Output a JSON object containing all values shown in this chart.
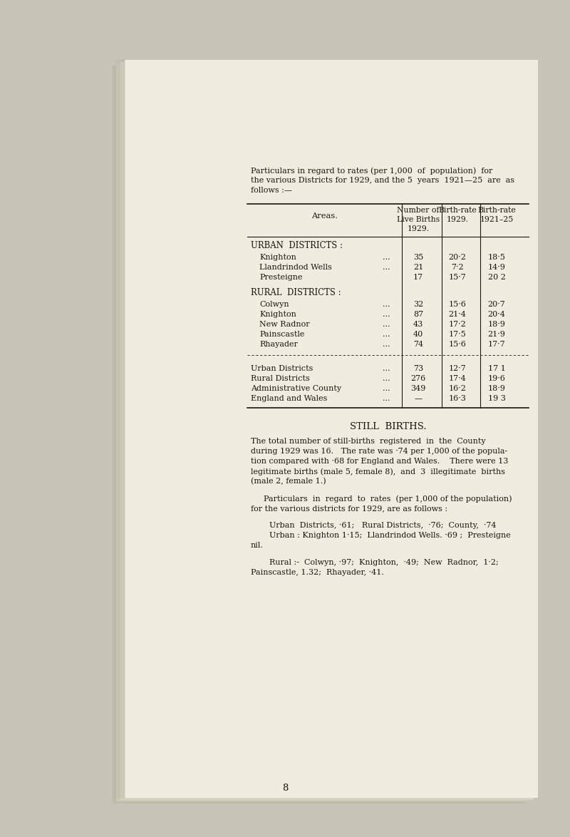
{
  "bg_color": "#c8c4b8",
  "paper_color": "#f0ece0",
  "paper_stack_color": "#d8d4c4",
  "text_color": "#1a1510",
  "intro_text_lines": [
    "Particulars in regard to rates (per 1,000  of  population)  for",
    "the various Districts for 1929, and the 5  years  1921—25  are  as",
    "follows :—"
  ],
  "col_header_area": "Areas.",
  "col_header_num": [
    "Number of",
    "Live Births",
    "1929."
  ],
  "col_header_br1": [
    "Birth-rate",
    "1929."
  ],
  "col_header_br2": [
    "Birth-rate",
    "1921–25"
  ],
  "urban_header": "URBAN  DISTRICTS :",
  "urban_rows": [
    [
      "Knighton",
      "...",
      "35",
      "20·2",
      "18·5"
    ],
    [
      "Llandrindod Wells",
      "...",
      "21",
      "7·2",
      "14·9"
    ],
    [
      "Presteigne",
      "",
      "17",
      "15·7",
      "20 2"
    ]
  ],
  "rural_header": "RURAL  DISTRICTS :",
  "rural_rows": [
    [
      "Colwyn",
      "...",
      "32",
      "15·6",
      "20·7"
    ],
    [
      "Knighton",
      "...",
      "87",
      "21·4",
      "20·4"
    ],
    [
      "New Radnor",
      "...",
      "43",
      "17·2",
      "18·9"
    ],
    [
      "Painscastle",
      "...",
      "40",
      "17·5",
      "21·9"
    ],
    [
      "Rhayader",
      "...",
      "74",
      "15·6",
      "17·7"
    ]
  ],
  "summary_rows": [
    [
      "Urban Districts",
      "...",
      "73",
      "12·7",
      "17 1"
    ],
    [
      "Rural Districts",
      "...",
      "276",
      "17·4",
      "19·6"
    ],
    [
      "Administrative County",
      "...",
      "349",
      "16·2",
      "18·9"
    ],
    [
      "England and Wales",
      "...",
      "—",
      "16·3",
      "19 3"
    ]
  ],
  "still_births_title": "STILL  BIRTHS.",
  "still_births_para1": [
    "The total number of still-births  registered  in  the  County",
    "during 1929 was 16.   The rate was ·74 per 1,000 of the popula-",
    "tion compared with ·68 for England and Wales.    There were 13",
    "legitimate births (male 5, female 8),  and  3  illegitimate  births",
    "(male 2, female 1.)"
  ],
  "still_births_para2": [
    "Particulars  in  regard  to  rates  (per 1,000 of the population)",
    "for the various districts for 1929, are as follows :"
  ],
  "still_births_para3": [
    "Urban  Districts, ·61;   Rural Districts,  ·76;  County,  ·74",
    "Urban : Knighton 1·15;  Llandrindod Wells. ·69 ;  Presteigne",
    "nil."
  ],
  "still_births_para4": [
    "Rural :-  Colwyn, ·97;  Knighton,  ·49;  New  Radnor,  1·2;",
    "Painscastle, 1.32;  Rhayader, ·41."
  ],
  "page_number": "8"
}
